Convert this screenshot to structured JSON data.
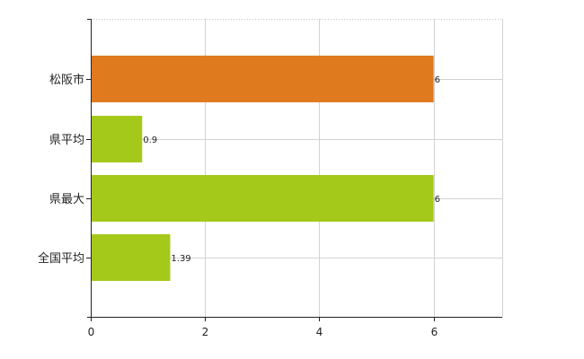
{
  "chart_data": {
    "type": "bar",
    "orientation": "horizontal",
    "categories": [
      "松阪市",
      "県平均",
      "県最大",
      "全国平均"
    ],
    "values": [
      6,
      0.9,
      6,
      1.39
    ],
    "value_labels": [
      "6",
      "0.9",
      "6",
      "1.39"
    ],
    "colors": [
      "#e07a1f",
      "#a5c91a",
      "#a5c91a",
      "#a5c91a"
    ],
    "xlim": [
      0,
      7.2
    ],
    "xticks": [
      0,
      2,
      4,
      6
    ],
    "grid": true,
    "legend": "none"
  }
}
